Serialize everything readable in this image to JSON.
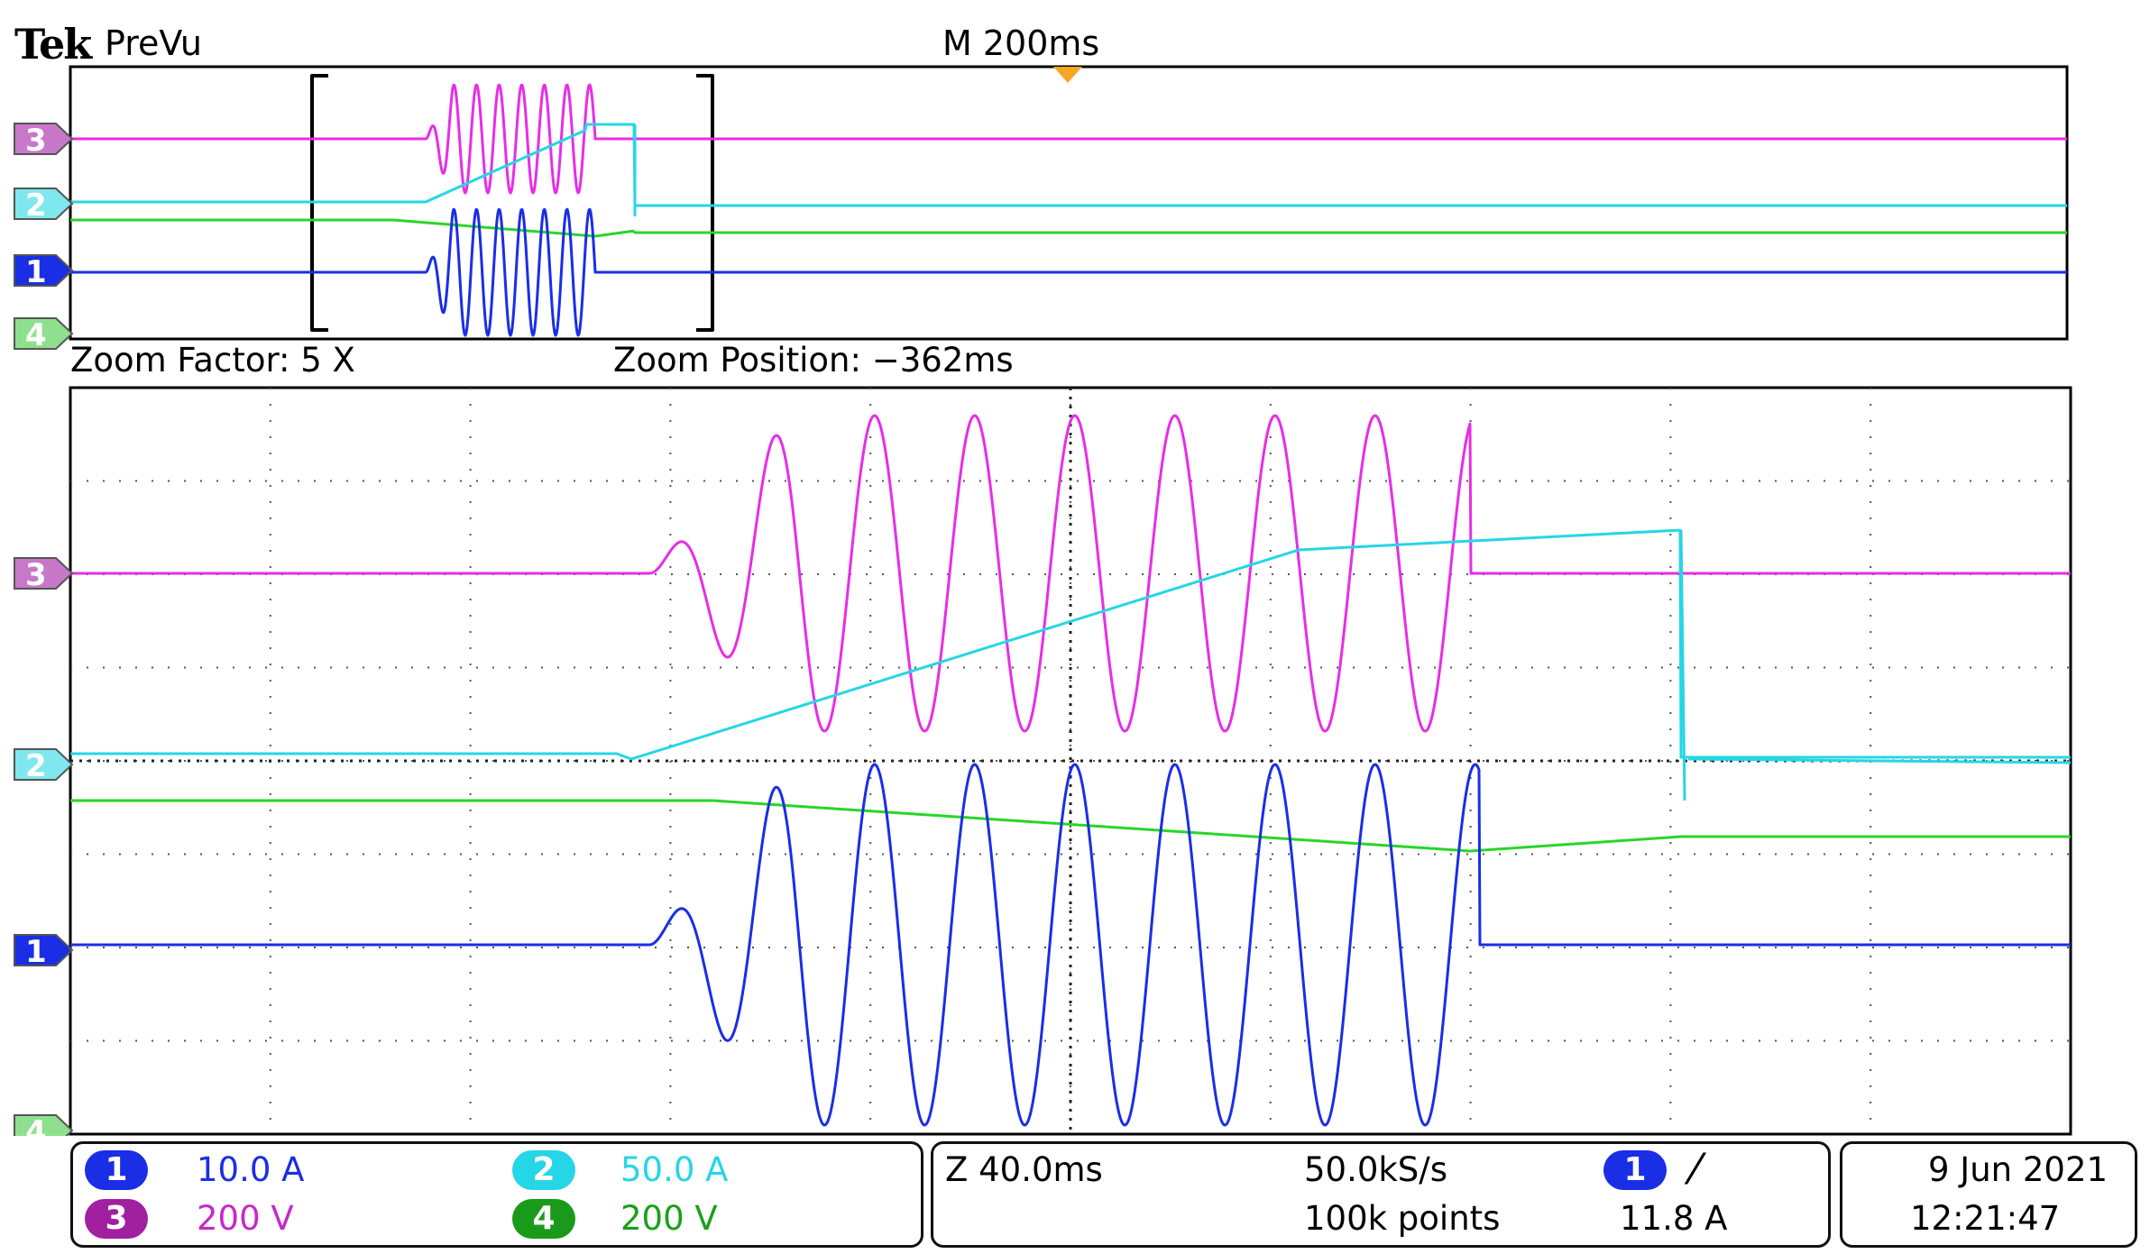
{
  "header": {
    "brand": "Tek",
    "mode": "PreVu",
    "horizontal_scale": "M 200ms"
  },
  "zoom": {
    "factor": "Zoom Factor: 5 X",
    "position": "Zoom Position: −362ms"
  },
  "colors": {
    "ch1": "#1a2ee6",
    "ch2": "#25d6e6",
    "ch3": "#e62ee6",
    "ch4": "#28d628",
    "ch1_marker": "#1a2ee6",
    "ch2_marker": "#7fe8ee",
    "ch3_marker": "#c878c8",
    "ch4_marker": "#8ee08e",
    "trigger": "#f5a623"
  },
  "markers": [
    {
      "label": "3",
      "channel": "ch3"
    },
    {
      "label": "2",
      "channel": "ch2"
    },
    {
      "label": "1",
      "channel": "ch1"
    },
    {
      "label": "4",
      "channel": "ch4"
    }
  ],
  "channels": [
    {
      "num": "1",
      "scale": "10.0 A"
    },
    {
      "num": "2",
      "scale": "50.0 A"
    },
    {
      "num": "3",
      "scale": "200 V"
    },
    {
      "num": "4",
      "scale": "200 V"
    }
  ],
  "timebase": {
    "zoom_scale": "Z 40.0ms",
    "sample_rate": "50.0kS/s",
    "record_length": "100k points"
  },
  "trigger": {
    "source": "1",
    "slope_icon": "rising-edge-icon",
    "slope_glyph": "⁄",
    "level": "11.8 A"
  },
  "datetime": {
    "date": "9 Jun  2021",
    "time": "12:21:47"
  }
}
